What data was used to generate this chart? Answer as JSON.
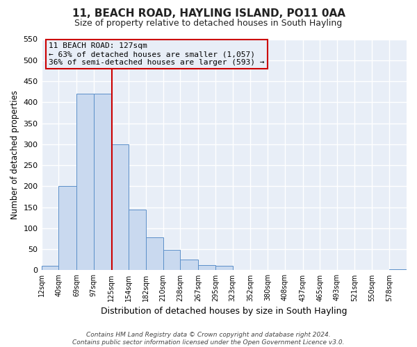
{
  "title": "11, BEACH ROAD, HAYLING ISLAND, PO11 0AA",
  "subtitle": "Size of property relative to detached houses in South Hayling",
  "xlabel": "Distribution of detached houses by size in South Hayling",
  "ylabel": "Number of detached properties",
  "bin_labels": [
    "12sqm",
    "40sqm",
    "69sqm",
    "97sqm",
    "125sqm",
    "154sqm",
    "182sqm",
    "210sqm",
    "238sqm",
    "267sqm",
    "295sqm",
    "323sqm",
    "352sqm",
    "380sqm",
    "408sqm",
    "437sqm",
    "465sqm",
    "493sqm",
    "521sqm",
    "550sqm",
    "578sqm"
  ],
  "bin_edges": [
    12,
    40,
    69,
    97,
    125,
    154,
    182,
    210,
    238,
    267,
    295,
    323,
    352,
    380,
    408,
    437,
    465,
    493,
    521,
    550,
    578,
    606
  ],
  "bar_heights": [
    10,
    200,
    420,
    420,
    300,
    145,
    78,
    48,
    25,
    13,
    10,
    0,
    0,
    0,
    0,
    0,
    0,
    0,
    0,
    0,
    3
  ],
  "bar_color": "#c9d9ef",
  "bar_edge_color": "#5b8fc9",
  "vline_x": 127,
  "vline_color": "#cc0000",
  "ylim": [
    0,
    550
  ],
  "yticks": [
    0,
    50,
    100,
    150,
    200,
    250,
    300,
    350,
    400,
    450,
    500,
    550
  ],
  "annotation_title": "11 BEACH ROAD: 127sqm",
  "annotation_line1": "← 63% of detached houses are smaller (1,057)",
  "annotation_line2": "36% of semi-detached houses are larger (593) →",
  "annotation_box_color": "#cc0000",
  "footer_line1": "Contains HM Land Registry data © Crown copyright and database right 2024.",
  "footer_line2": "Contains public sector information licensed under the Open Government Licence v3.0.",
  "plot_bg_color": "#e8eef7",
  "fig_bg_color": "#ffffff",
  "grid_color": "#ffffff"
}
